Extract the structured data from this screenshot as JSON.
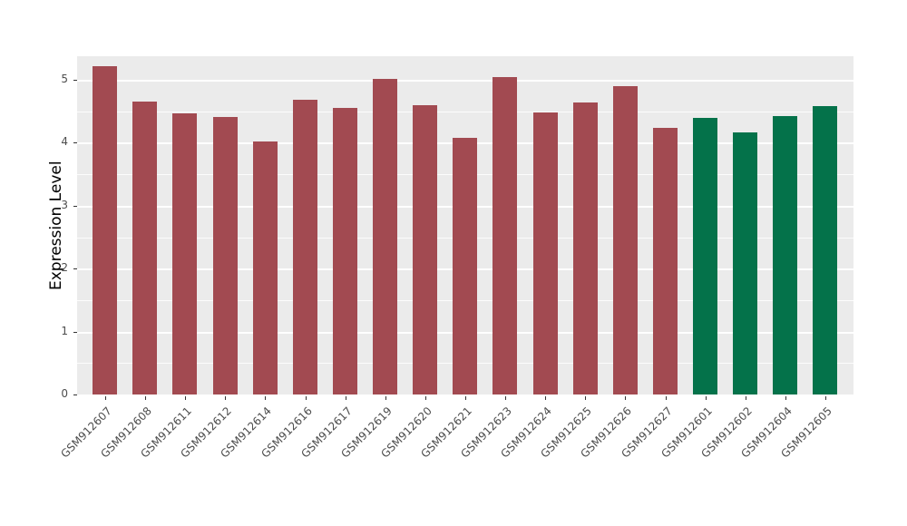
{
  "chart_data": {
    "type": "bar",
    "title": "",
    "xlabel": "",
    "ylabel": "Expression Level",
    "categories": [
      "GSM912607",
      "GSM912608",
      "GSM912611",
      "GSM912612",
      "GSM912614",
      "GSM912616",
      "GSM912617",
      "GSM912619",
      "GSM912620",
      "GSM912621",
      "GSM912623",
      "GSM912624",
      "GSM912625",
      "GSM912626",
      "GSM912627",
      "GSM912601",
      "GSM912602",
      "GSM912604",
      "GSM912605"
    ],
    "values": [
      5.22,
      4.65,
      4.46,
      4.41,
      4.02,
      4.68,
      4.55,
      5.02,
      4.6,
      4.08,
      5.05,
      4.48,
      4.64,
      4.9,
      4.24,
      4.39,
      4.17,
      4.43,
      4.58
    ],
    "groups": [
      "a",
      "a",
      "a",
      "a",
      "a",
      "a",
      "a",
      "a",
      "a",
      "a",
      "a",
      "a",
      "a",
      "a",
      "a",
      "b",
      "b",
      "b",
      "b"
    ],
    "group_colors": {
      "a": "#A24A51",
      "b": "#04724A"
    },
    "yticks": [
      0,
      1,
      2,
      3,
      4,
      5
    ],
    "ylim": [
      0,
      5.4
    ],
    "grid": "on",
    "legend": "none",
    "panel_bg": "#EBEBEB",
    "grid_color": "#FFFFFF",
    "axis_text_color": "#4D4D4D"
  }
}
